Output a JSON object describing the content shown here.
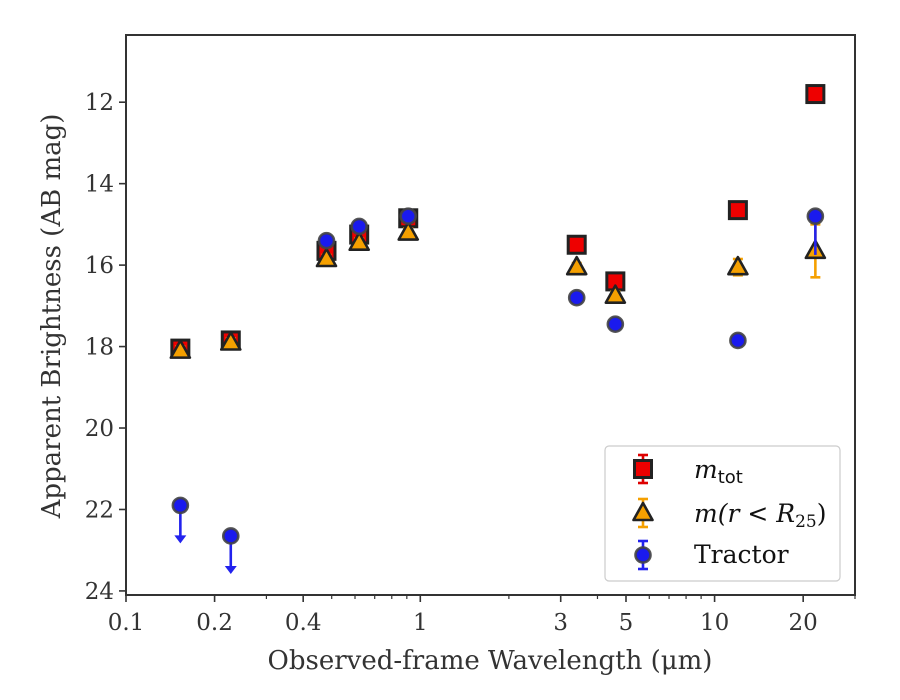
{
  "chart_data": {
    "type": "scatter",
    "xlabel": "Observed-frame Wavelength (μm)",
    "ylabel": "Apparent Brightness (AB mag)",
    "x_scale": "log",
    "xlim": [
      0.1,
      30
    ],
    "ylim": [
      24.1,
      10.35
    ],
    "y_inverted": true,
    "grid": false,
    "legend_position": "lower right",
    "x_ticks": [
      {
        "value": 0.1,
        "label": "0.1"
      },
      {
        "value": 0.2,
        "label": "0.2"
      },
      {
        "value": 0.4,
        "label": "0.4"
      },
      {
        "value": 1,
        "label": "1"
      },
      {
        "value": 3,
        "label": "3"
      },
      {
        "value": 5,
        "label": "5"
      },
      {
        "value": 10,
        "label": "10"
      },
      {
        "value": 20,
        "label": "20"
      }
    ],
    "y_ticks": [
      {
        "value": 12,
        "label": "12"
      },
      {
        "value": 14,
        "label": "14"
      },
      {
        "value": 16,
        "label": "16"
      },
      {
        "value": 18,
        "label": "18"
      },
      {
        "value": 20,
        "label": "20"
      },
      {
        "value": 22,
        "label": "22"
      },
      {
        "value": 24,
        "label": "24"
      }
    ],
    "series": [
      {
        "name": "m_tot",
        "legend_main": "m",
        "legend_sub": "tot",
        "marker": "square",
        "face_color": "#ee0000",
        "edge_color": "#222222",
        "error_color": "#dd0000",
        "points": [
          {
            "x": 0.153,
            "y": 18.05,
            "err": 0.12
          },
          {
            "x": 0.227,
            "y": 17.85,
            "err": 0.1
          },
          {
            "x": 0.48,
            "y": 15.65,
            "err": 0.12
          },
          {
            "x": 0.62,
            "y": 15.25,
            "err": 0.12
          },
          {
            "x": 0.91,
            "y": 14.85,
            "err": 0.12
          },
          {
            "x": 3.4,
            "y": 15.5,
            "err": 0.08
          },
          {
            "x": 4.6,
            "y": 16.4,
            "err": 0.12
          },
          {
            "x": 12.0,
            "y": 14.65,
            "err": 0.08
          },
          {
            "x": 22.0,
            "y": 11.8,
            "err": 0.08
          }
        ]
      },
      {
        "name": "m(r < R25)",
        "legend_main": "m(r < R",
        "legend_sub": "25",
        "legend_close": ")",
        "marker": "triangle",
        "face_color": "#f5a000",
        "edge_color": "#222222",
        "error_color": "#f5a000",
        "points": [
          {
            "x": 0.153,
            "y": 18.1,
            "err": 0.1
          },
          {
            "x": 0.227,
            "y": 17.9,
            "err": 0.1
          },
          {
            "x": 0.48,
            "y": 15.85,
            "err": 0.1
          },
          {
            "x": 0.62,
            "y": 15.45,
            "err": 0.1
          },
          {
            "x": 0.91,
            "y": 15.2,
            "err": 0.1
          },
          {
            "x": 3.4,
            "y": 16.05,
            "err": 0.1
          },
          {
            "x": 4.6,
            "y": 16.75,
            "err": 0.1
          },
          {
            "x": 12.0,
            "y": 16.05,
            "err": 0.2
          },
          {
            "x": 22.0,
            "y": 15.65,
            "err": 0.65
          }
        ]
      },
      {
        "name": "Tractor",
        "legend_main": "Tractor",
        "marker": "circle",
        "face_color": "#1a1aee",
        "edge_color": "#444444",
        "error_color": "#2222ee",
        "points": [
          {
            "x": 0.153,
            "y": 21.9,
            "err": 0,
            "upper_limit": true
          },
          {
            "x": 0.227,
            "y": 22.65,
            "err": 0,
            "upper_limit": true
          },
          {
            "x": 0.48,
            "y": 15.4,
            "err": 0.08
          },
          {
            "x": 0.62,
            "y": 15.05,
            "err": 0.08
          },
          {
            "x": 0.91,
            "y": 14.8,
            "err": 0.08
          },
          {
            "x": 3.4,
            "y": 16.8,
            "err": 0.05
          },
          {
            "x": 4.6,
            "y": 17.45,
            "err": 0.05
          },
          {
            "x": 12.0,
            "y": 17.85,
            "err": 0.05
          },
          {
            "x": 22.0,
            "y": 14.8,
            "err": 0.95,
            "err_dir": "down"
          }
        ]
      }
    ]
  }
}
